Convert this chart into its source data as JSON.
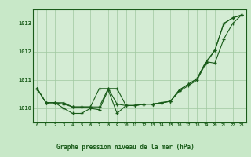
{
  "title": "Graphe pression niveau de la mer (hPa)",
  "hours": [
    0,
    1,
    2,
    3,
    4,
    5,
    6,
    7,
    8,
    9,
    10,
    11,
    12,
    13,
    14,
    15,
    16,
    17,
    18,
    19,
    20,
    21,
    22,
    23
  ],
  "s1": [
    1010.7,
    1010.2,
    1010.2,
    1010.15,
    1010.05,
    1010.05,
    1010.05,
    1010.7,
    1010.7,
    1010.7,
    1010.1,
    1010.1,
    1010.15,
    1010.15,
    1010.2,
    1010.25,
    1010.65,
    1010.85,
    1011.05,
    1011.65,
    1012.05,
    1013.0,
    1013.2,
    1013.3
  ],
  "s2": [
    1010.7,
    1010.2,
    1010.2,
    1010.2,
    1010.05,
    1010.05,
    1010.05,
    1010.05,
    1010.7,
    1010.15,
    1010.1,
    1010.1,
    1010.15,
    1010.15,
    1010.2,
    1010.25,
    1010.65,
    1010.85,
    1011.05,
    1011.65,
    1011.6,
    1012.45,
    1013.0,
    1013.3
  ],
  "s3": [
    1010.7,
    1010.2,
    1010.2,
    1010.0,
    1009.82,
    1009.82,
    1010.0,
    1009.95,
    1010.65,
    1009.82,
    1010.1,
    1010.1,
    1010.15,
    1010.15,
    1010.2,
    1010.25,
    1010.6,
    1010.8,
    1011.0,
    1011.6,
    1012.05,
    1013.0,
    1013.2,
    1013.3
  ],
  "line_color": "#1a5c1a",
  "bg_color": "#c8e8c8",
  "plot_bg": "#d4ecd4",
  "grid_color": "#a0c8a0",
  "ylim": [
    1009.5,
    1013.5
  ],
  "yticks": [
    1010,
    1011,
    1012,
    1013
  ]
}
